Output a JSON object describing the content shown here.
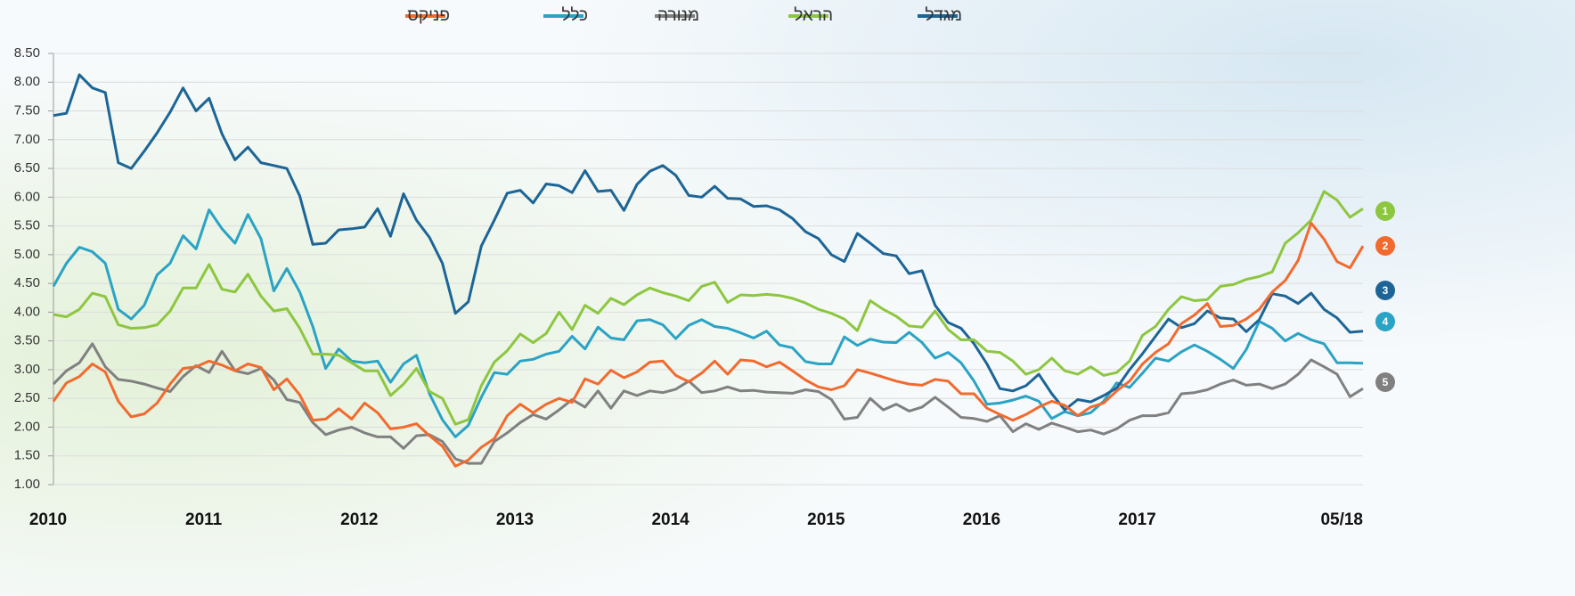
{
  "chart_data": {
    "type": "line",
    "categories": [
      "2010",
      null,
      null,
      null,
      null,
      null,
      null,
      null,
      null,
      null,
      null,
      null,
      "2011",
      null,
      null,
      null,
      null,
      null,
      null,
      null,
      null,
      null,
      null,
      null,
      "2012",
      null,
      null,
      null,
      null,
      null,
      null,
      null,
      null,
      null,
      null,
      null,
      "2013",
      null,
      null,
      null,
      null,
      null,
      null,
      null,
      null,
      null,
      null,
      null,
      "2014",
      null,
      null,
      null,
      null,
      null,
      null,
      null,
      null,
      null,
      null,
      null,
      "2015",
      null,
      null,
      null,
      null,
      null,
      null,
      null,
      null,
      null,
      null,
      null,
      "2016",
      null,
      null,
      null,
      null,
      null,
      null,
      null,
      null,
      null,
      null,
      null,
      "2017",
      null,
      null,
      null,
      null,
      null,
      null,
      null,
      null,
      null,
      null,
      null,
      null,
      null,
      null,
      null,
      null,
      "05/18"
    ],
    "ylim": [
      1,
      8.5
    ],
    "yticks": [
      {
        "value": 1,
        "label": "1.00"
      },
      {
        "value": 1.5,
        "label": "1.50"
      },
      {
        "value": 2,
        "label": "2.00"
      },
      {
        "value": 2.5,
        "label": "2.50"
      },
      {
        "value": 3,
        "label": "3.00"
      },
      {
        "value": 3.5,
        "label": "3.50"
      },
      {
        "value": 4,
        "label": "4.00"
      },
      {
        "value": 4.5,
        "label": "4.50"
      },
      {
        "value": 5,
        "label": "5.00"
      },
      {
        "value": 5.5,
        "label": "5.50"
      },
      {
        "value": 6,
        "label": "6.00"
      },
      {
        "value": 6.5,
        "label": "6.50"
      },
      {
        "value": 7,
        "label": "7.00"
      },
      {
        "value": 7.5,
        "label": "7.50"
      },
      {
        "value": 8,
        "label": "8.00"
      },
      {
        "value": 8.5,
        "label": "8.50"
      }
    ],
    "grid": true,
    "legend": "top",
    "series": [
      {
        "name": "מגדל",
        "color": "#1c6596",
        "values": [
          7.42,
          7.46,
          8.13,
          7.9,
          7.82,
          6.6,
          6.5,
          6.8,
          7.12,
          7.48,
          7.9,
          7.5,
          7.72,
          7.1,
          6.65,
          6.87,
          6.6,
          6.55,
          6.5,
          6.02,
          5.18,
          5.2,
          5.43,
          5.45,
          5.48,
          5.8,
          5.32,
          6.06,
          5.6,
          5.3,
          4.85,
          3.98,
          4.18,
          5.15,
          5.6,
          6.07,
          6.12,
          5.9,
          6.23,
          6.2,
          6.08,
          6.46,
          6.1,
          6.12,
          5.77,
          6.22,
          6.45,
          6.55,
          6.38,
          6.03,
          6.0,
          6.19,
          5.98,
          5.97,
          5.84,
          5.85,
          5.78,
          5.63,
          5.4,
          5.28,
          5.0,
          4.88,
          5.37,
          5.2,
          5.02,
          4.98,
          4.67,
          4.72,
          4.12,
          3.82,
          3.72,
          3.45,
          3.1,
          2.67,
          2.63,
          2.72,
          2.92,
          2.58,
          2.3,
          2.48,
          2.44,
          2.55,
          2.68,
          3.0,
          3.28,
          3.58,
          3.88,
          3.73,
          3.8,
          4.02,
          3.9,
          3.88,
          3.66,
          3.87,
          4.32,
          4.28,
          4.15,
          4.33,
          4.05,
          3.9,
          3.65,
          3.67
        ]
      },
      {
        "name": "הראל",
        "color": "#8dc63f",
        "values": [
          3.96,
          3.92,
          4.05,
          4.33,
          4.27,
          3.78,
          3.72,
          3.73,
          3.78,
          4.02,
          4.42,
          4.42,
          4.83,
          4.4,
          4.35,
          4.66,
          4.28,
          4.02,
          4.06,
          3.72,
          3.27,
          3.27,
          3.25,
          3.12,
          2.98,
          2.98,
          2.55,
          2.75,
          3.02,
          2.62,
          2.5,
          2.05,
          2.13,
          2.72,
          3.13,
          3.33,
          3.62,
          3.47,
          3.63,
          4.0,
          3.7,
          4.12,
          3.98,
          4.24,
          4.13,
          4.3,
          4.42,
          4.34,
          4.28,
          4.2,
          4.45,
          4.52,
          4.17,
          4.3,
          4.29,
          4.31,
          4.29,
          4.24,
          4.16,
          4.05,
          3.98,
          3.88,
          3.68,
          4.2,
          4.05,
          3.93,
          3.76,
          3.74,
          4.02,
          3.7,
          3.52,
          3.52,
          3.32,
          3.3,
          3.15,
          2.92,
          3.0,
          3.2,
          2.98,
          2.92,
          3.05,
          2.9,
          2.95,
          3.15,
          3.6,
          3.75,
          4.05,
          4.27,
          4.2,
          4.22,
          4.45,
          4.48,
          4.57,
          4.62,
          4.7,
          5.2,
          5.38,
          5.6,
          6.1,
          5.95,
          5.65,
          5.8
        ]
      },
      {
        "name": "מנורה",
        "color": "#808080",
        "values": [
          2.75,
          2.98,
          3.12,
          3.45,
          3.05,
          2.83,
          2.8,
          2.75,
          2.68,
          2.62,
          2.88,
          3.07,
          2.95,
          3.32,
          2.98,
          2.93,
          3.02,
          2.82,
          2.48,
          2.43,
          2.08,
          1.87,
          1.95,
          2.0,
          1.9,
          1.83,
          1.83,
          1.63,
          1.85,
          1.87,
          1.75,
          1.45,
          1.37,
          1.37,
          1.75,
          1.9,
          2.08,
          2.22,
          2.14,
          2.3,
          2.48,
          2.35,
          2.63,
          2.33,
          2.63,
          2.55,
          2.63,
          2.6,
          2.66,
          2.8,
          2.6,
          2.63,
          2.7,
          2.63,
          2.64,
          2.61,
          2.6,
          2.59,
          2.65,
          2.62,
          2.48,
          2.14,
          2.17,
          2.5,
          2.3,
          2.4,
          2.28,
          2.35,
          2.52,
          2.35,
          2.17,
          2.15,
          2.1,
          2.2,
          1.92,
          2.06,
          1.96,
          2.07,
          2.0,
          1.92,
          1.95,
          1.88,
          1.97,
          2.12,
          2.2,
          2.2,
          2.25,
          2.58,
          2.6,
          2.65,
          2.75,
          2.82,
          2.73,
          2.75,
          2.67,
          2.75,
          2.92,
          3.17,
          3.05,
          2.92,
          2.53,
          2.67
        ]
      },
      {
        "name": "כלל",
        "color": "#2aa3c4",
        "values": [
          4.45,
          4.85,
          5.13,
          5.05,
          4.85,
          4.05,
          3.88,
          4.12,
          4.65,
          4.85,
          5.33,
          5.1,
          5.78,
          5.45,
          5.2,
          5.7,
          5.28,
          4.37,
          4.76,
          4.35,
          3.75,
          3.02,
          3.36,
          3.15,
          3.12,
          3.15,
          2.78,
          3.1,
          3.25,
          2.58,
          2.13,
          1.83,
          2.03,
          2.52,
          2.95,
          2.92,
          3.15,
          3.18,
          3.27,
          3.32,
          3.58,
          3.36,
          3.74,
          3.55,
          3.52,
          3.85,
          3.87,
          3.78,
          3.54,
          3.77,
          3.87,
          3.75,
          3.72,
          3.64,
          3.55,
          3.67,
          3.43,
          3.38,
          3.14,
          3.1,
          3.1,
          3.57,
          3.42,
          3.53,
          3.48,
          3.47,
          3.65,
          3.47,
          3.2,
          3.3,
          3.12,
          2.8,
          2.4,
          2.42,
          2.47,
          2.54,
          2.45,
          2.15,
          2.27,
          2.2,
          2.25,
          2.45,
          2.77,
          2.69,
          2.94,
          3.2,
          3.15,
          3.31,
          3.43,
          3.32,
          3.18,
          3.02,
          3.35,
          3.84,
          3.72,
          3.5,
          3.63,
          3.52,
          3.45,
          3.12,
          3.12,
          3.11
        ]
      },
      {
        "name": "פניקס",
        "color": "#f26a2e",
        "values": [
          2.45,
          2.77,
          2.88,
          3.1,
          2.96,
          2.45,
          2.18,
          2.23,
          2.42,
          2.75,
          3.02,
          3.05,
          3.15,
          3.08,
          2.98,
          3.1,
          3.04,
          2.65,
          2.84,
          2.56,
          2.12,
          2.14,
          2.32,
          2.14,
          2.42,
          2.25,
          1.97,
          2.0,
          2.06,
          1.85,
          1.67,
          1.32,
          1.43,
          1.65,
          1.8,
          2.2,
          2.4,
          2.25,
          2.4,
          2.5,
          2.43,
          2.84,
          2.75,
          2.99,
          2.86,
          2.96,
          3.13,
          3.15,
          2.9,
          2.79,
          2.94,
          3.15,
          2.92,
          3.17,
          3.15,
          3.05,
          3.13,
          2.98,
          2.82,
          2.7,
          2.65,
          2.72,
          3.0,
          2.94,
          2.87,
          2.8,
          2.75,
          2.73,
          2.83,
          2.8,
          2.58,
          2.58,
          2.33,
          2.22,
          2.12,
          2.22,
          2.35,
          2.45,
          2.38,
          2.2,
          2.35,
          2.42,
          2.63,
          2.8,
          3.1,
          3.3,
          3.45,
          3.8,
          3.95,
          4.15,
          3.75,
          3.77,
          3.88,
          4.05,
          4.35,
          4.55,
          4.9,
          5.55,
          5.27,
          4.88,
          4.77,
          5.15
        ]
      }
    ],
    "annotations": [
      {
        "text": "1",
        "color": "#8dc63f"
      },
      {
        "text": "2",
        "color": "#f26a2e"
      },
      {
        "text": "3",
        "color": "#1c6596"
      },
      {
        "text": "4",
        "color": "#2aa3c4"
      },
      {
        "text": "5",
        "color": "#808080"
      }
    ]
  }
}
